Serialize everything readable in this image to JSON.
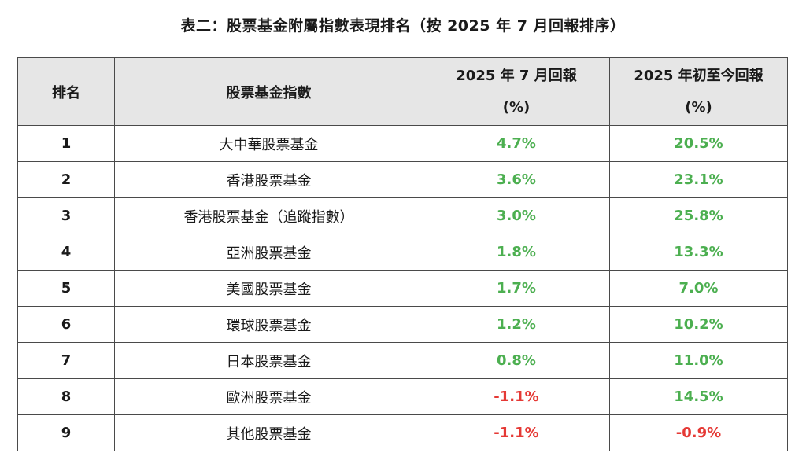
{
  "title": "表二：股票基金附屬指數表現排名（按 2025 年 7 月回報排序）",
  "colors": {
    "positive": "#4caf50",
    "negative": "#e53935",
    "header_bg": "#e6e6e6"
  },
  "table": {
    "headers": {
      "rank": "排名",
      "index": "股票基金指數",
      "july_line1": "2025 年 7 月回報",
      "july_line2": "(%)",
      "ytd_line1": "2025 年初至今回報",
      "ytd_line2": "(%)"
    },
    "rows": [
      {
        "rank": "1",
        "name": "大中華股票基金",
        "july": "4.7%",
        "ytd": "20.5%"
      },
      {
        "rank": "2",
        "name": "香港股票基金",
        "july": "3.6%",
        "ytd": "23.1%"
      },
      {
        "rank": "3",
        "name": "香港股票基金（追蹤指數）",
        "july": "3.0%",
        "ytd": "25.8%"
      },
      {
        "rank": "4",
        "name": "亞洲股票基金",
        "july": "1.8%",
        "ytd": "13.3%"
      },
      {
        "rank": "5",
        "name": "美國股票基金",
        "july": "1.7%",
        "ytd": "7.0%"
      },
      {
        "rank": "6",
        "name": "環球股票基金",
        "july": "1.2%",
        "ytd": "10.2%"
      },
      {
        "rank": "7",
        "name": "日本股票基金",
        "july": "0.8%",
        "ytd": "11.0%"
      },
      {
        "rank": "8",
        "name": "歐洲股票基金",
        "july": "-1.1%",
        "ytd": "14.5%"
      },
      {
        "rank": "9",
        "name": "其他股票基金",
        "july": "-1.1%",
        "ytd": "-0.9%"
      }
    ]
  }
}
